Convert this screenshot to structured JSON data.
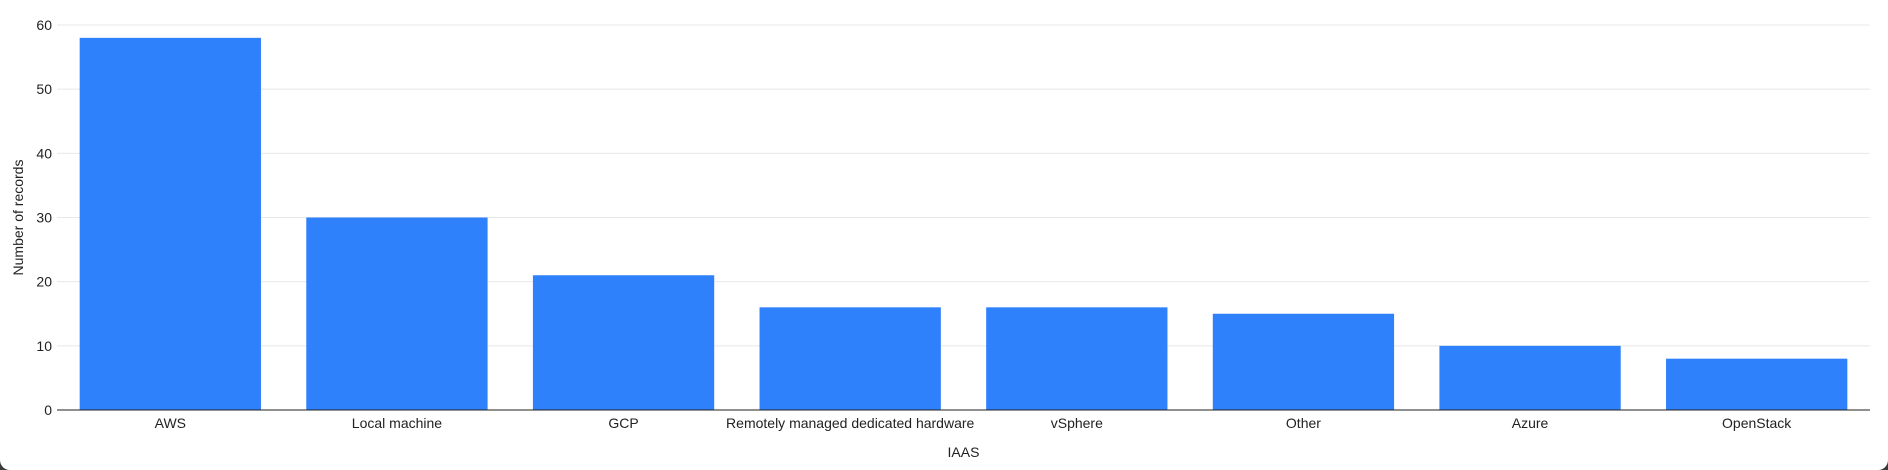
{
  "chart_data": {
    "type": "bar",
    "title": "",
    "xlabel": "IAAS",
    "ylabel": "Number of records",
    "categories": [
      "AWS",
      "Local machine",
      "GCP",
      "Remotely managed dedicated hardware",
      "vSphere",
      "Other",
      "Azure",
      "OpenStack"
    ],
    "values": [
      58,
      30,
      21,
      16,
      16,
      15,
      10,
      8
    ],
    "ylim": [
      0,
      60
    ],
    "yticks": [
      0,
      10,
      20,
      30,
      40,
      50,
      60
    ],
    "grid": true,
    "bar_color": "#2f80fb",
    "gridline_color": "#e8e8e8",
    "axis_color": "#222222"
  }
}
